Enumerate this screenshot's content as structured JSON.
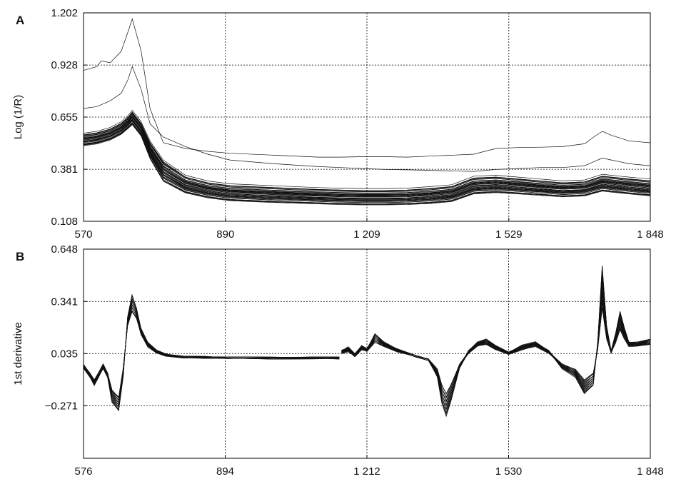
{
  "chart_data": [
    {
      "panel": "A",
      "type": "line",
      "title": "",
      "xlabel": "",
      "ylabel": "Log (1/R)",
      "xlim": [
        570,
        1848
      ],
      "ylim": [
        0.108,
        1.202
      ],
      "x_ticks": [
        570,
        890,
        1209,
        1529,
        1848
      ],
      "x_tick_labels": [
        "570",
        "890",
        "1 209",
        "1 529",
        "1 848"
      ],
      "y_ticks": [
        0.108,
        0.381,
        0.655,
        0.928,
        1.202
      ],
      "y_tick_labels": [
        "0.108",
        "0.381",
        "0.655",
        "0.928",
        "1.202"
      ],
      "grid": true,
      "series_count": 40,
      "representative_series": [
        {
          "x": [
            570,
            600,
            610,
            630,
            655,
            670,
            680,
            700,
            720,
            750,
            800,
            850,
            900,
            1000,
            1100,
            1150,
            1200,
            1250,
            1300,
            1350,
            1400,
            1450,
            1500,
            1550,
            1600,
            1650,
            1700,
            1720,
            1740,
            1760,
            1780,
            1800,
            1848
          ],
          "y": [
            0.9,
            0.92,
            0.95,
            0.94,
            1.0,
            1.1,
            1.17,
            1.0,
            0.7,
            0.52,
            0.49,
            0.475,
            0.465,
            0.455,
            0.445,
            0.445,
            0.447,
            0.447,
            0.445,
            0.45,
            0.455,
            0.46,
            0.49,
            0.495,
            0.497,
            0.5,
            0.515,
            0.55,
            0.58,
            0.56,
            0.545,
            0.53,
            0.52
          ]
        },
        {
          "x": [
            570,
            600,
            630,
            655,
            670,
            680,
            700,
            720,
            750,
            800,
            850,
            900,
            1000,
            1100,
            1150,
            1200,
            1250,
            1300,
            1350,
            1400,
            1450,
            1500,
            1550,
            1600,
            1650,
            1700,
            1720,
            1740,
            1760,
            1780,
            1800,
            1848
          ],
          "y": [
            0.7,
            0.71,
            0.74,
            0.78,
            0.85,
            0.92,
            0.8,
            0.62,
            0.55,
            0.5,
            0.46,
            0.43,
            0.41,
            0.395,
            0.39,
            0.385,
            0.38,
            0.378,
            0.376,
            0.372,
            0.37,
            0.38,
            0.385,
            0.39,
            0.39,
            0.4,
            0.42,
            0.44,
            0.43,
            0.42,
            0.41,
            0.4
          ]
        },
        {
          "x": [
            570,
            600,
            630,
            655,
            670,
            680,
            700,
            720,
            750,
            800,
            850,
            900,
            1000,
            1100,
            1150,
            1200,
            1250,
            1300,
            1350,
            1400,
            1450,
            1500,
            1550,
            1600,
            1650,
            1700,
            1720,
            1740,
            1760,
            1780,
            1800,
            1848
          ],
          "y": [
            0.56,
            0.57,
            0.59,
            0.62,
            0.65,
            0.68,
            0.62,
            0.52,
            0.42,
            0.34,
            0.31,
            0.295,
            0.285,
            0.275,
            0.272,
            0.27,
            0.27,
            0.272,
            0.28,
            0.29,
            0.335,
            0.34,
            0.33,
            0.32,
            0.31,
            0.315,
            0.33,
            0.345,
            0.34,
            0.335,
            0.33,
            0.32
          ]
        },
        {
          "x": [
            570,
            600,
            630,
            655,
            670,
            680,
            700,
            720,
            750,
            800,
            850,
            900,
            1000,
            1100,
            1150,
            1200,
            1250,
            1300,
            1350,
            1400,
            1450,
            1500,
            1550,
            1600,
            1650,
            1700,
            1720,
            1740,
            1760,
            1780,
            1800,
            1848
          ],
          "y": [
            0.51,
            0.52,
            0.54,
            0.57,
            0.6,
            0.62,
            0.56,
            0.44,
            0.32,
            0.26,
            0.235,
            0.22,
            0.21,
            0.203,
            0.2,
            0.198,
            0.198,
            0.2,
            0.205,
            0.215,
            0.255,
            0.262,
            0.255,
            0.248,
            0.24,
            0.245,
            0.258,
            0.27,
            0.265,
            0.26,
            0.255,
            0.245
          ]
        }
      ]
    },
    {
      "panel": "B",
      "type": "line",
      "title": "",
      "xlabel": "",
      "ylabel": "1st derivative",
      "xlim": [
        576,
        1848
      ],
      "ylim": [
        -0.58,
        0.648
      ],
      "x_ticks": [
        576,
        894,
        1212,
        1530,
        1848
      ],
      "x_tick_labels": [
        "576",
        "894",
        "1 212",
        "1 530",
        "1 848"
      ],
      "y_ticks": [
        -0.271,
        0.035,
        0.341,
        0.648
      ],
      "y_tick_labels": [
        "−0.271",
        "0.035",
        "0.341",
        "0.648"
      ],
      "grid": true,
      "series_count": 40,
      "representative_series": [
        {
          "x": [
            576,
            590,
            600,
            610,
            620,
            630,
            640,
            655,
            665,
            675,
            685,
            695,
            705,
            720,
            740,
            760,
            800,
            850,
            900,
            1000,
            1100,
            1150
          ],
          "y": [
            -0.05,
            -0.1,
            -0.15,
            -0.1,
            -0.05,
            -0.1,
            -0.25,
            -0.3,
            -0.1,
            0.25,
            0.38,
            0.3,
            0.18,
            0.1,
            0.05,
            0.03,
            0.015,
            0.015,
            0.01,
            0.01,
            0.01,
            0.01
          ]
        },
        {
          "x": [
            1155,
            1170,
            1185,
            1200,
            1212,
            1230,
            1250,
            1280,
            1320,
            1350,
            1370,
            1380,
            1390,
            1400,
            1420,
            1440,
            1460,
            1480,
            1500,
            1530,
            1560,
            1590,
            1620,
            1650,
            1680,
            1700,
            1720,
            1730,
            1740,
            1750,
            1760,
            1770,
            1780,
            1790,
            1800,
            1820,
            1848
          ],
          "y": [
            0.05,
            0.07,
            0.03,
            0.08,
            0.06,
            0.15,
            0.1,
            0.06,
            0.02,
            0.0,
            -0.1,
            -0.25,
            -0.33,
            -0.25,
            -0.05,
            0.05,
            0.1,
            0.12,
            0.08,
            0.04,
            0.08,
            0.1,
            0.05,
            -0.05,
            -0.1,
            -0.2,
            -0.15,
            0.1,
            0.55,
            0.2,
            0.05,
            0.15,
            0.28,
            0.18,
            0.1,
            0.1,
            0.12
          ]
        },
        {
          "x": [
            576,
            590,
            600,
            610,
            620,
            630,
            640,
            655,
            665,
            675,
            685,
            695,
            705,
            720,
            740,
            760,
            800,
            850,
            900,
            1000,
            1100,
            1150
          ],
          "y": [
            -0.03,
            -0.08,
            -0.12,
            -0.08,
            -0.03,
            -0.08,
            -0.18,
            -0.22,
            -0.05,
            0.2,
            0.28,
            0.24,
            0.15,
            0.08,
            0.04,
            0.025,
            0.012,
            0.012,
            0.01,
            0.008,
            0.008,
            0.008
          ]
        },
        {
          "x": [
            1155,
            1170,
            1185,
            1200,
            1212,
            1230,
            1250,
            1280,
            1320,
            1350,
            1370,
            1380,
            1390,
            1400,
            1420,
            1440,
            1460,
            1480,
            1500,
            1530,
            1560,
            1590,
            1620,
            1650,
            1680,
            1700,
            1720,
            1730,
            1740,
            1750,
            1760,
            1770,
            1780,
            1790,
            1800,
            1820,
            1848
          ],
          "y": [
            0.04,
            0.05,
            0.02,
            0.06,
            0.05,
            0.1,
            0.08,
            0.05,
            0.02,
            0.0,
            -0.06,
            -0.15,
            -0.2,
            -0.15,
            -0.03,
            0.04,
            0.08,
            0.09,
            0.06,
            0.035,
            0.06,
            0.08,
            0.04,
            -0.03,
            -0.06,
            -0.12,
            -0.08,
            0.06,
            0.3,
            0.12,
            0.04,
            0.1,
            0.18,
            0.12,
            0.08,
            0.08,
            0.09
          ]
        }
      ]
    }
  ]
}
